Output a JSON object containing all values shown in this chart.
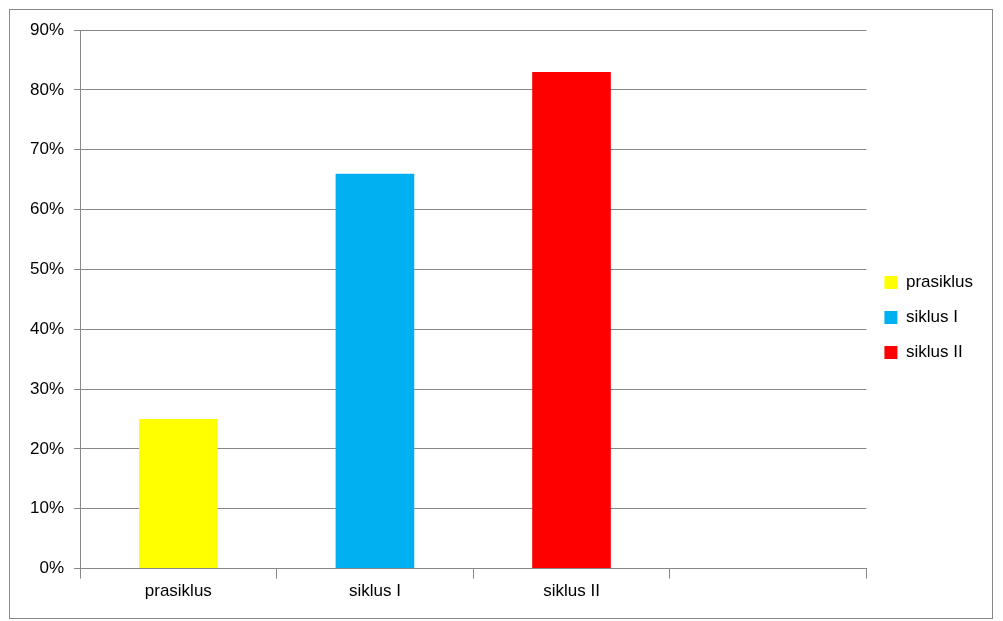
{
  "chart_data": {
    "type": "bar",
    "categories": [
      "prasiklus",
      "siklus I",
      "siklus II",
      null
    ],
    "series": [
      {
        "name": "prasiklus",
        "color": "#ffff00",
        "values": [
          25,
          null,
          null,
          null
        ]
      },
      {
        "name": "siklus I",
        "color": "#00b0f0",
        "values": [
          null,
          66,
          null,
          null
        ]
      },
      {
        "name": "siklus II",
        "color": "#ff0000",
        "values": [
          null,
          null,
          83,
          null
        ]
      }
    ],
    "ylim": [
      0,
      90
    ],
    "yticks": [
      {
        "value": 0,
        "label": "0%"
      },
      {
        "value": 10,
        "label": "10%"
      },
      {
        "value": 20,
        "label": "20%"
      },
      {
        "value": 30,
        "label": "30%"
      },
      {
        "value": 40,
        "label": "40%"
      },
      {
        "value": 50,
        "label": "50%"
      },
      {
        "value": 60,
        "label": "60%"
      },
      {
        "value": 70,
        "label": "70%"
      },
      {
        "value": 80,
        "label": "80%"
      },
      {
        "value": 90,
        "label": "90%"
      }
    ],
    "grid": "y",
    "legend": "right"
  }
}
